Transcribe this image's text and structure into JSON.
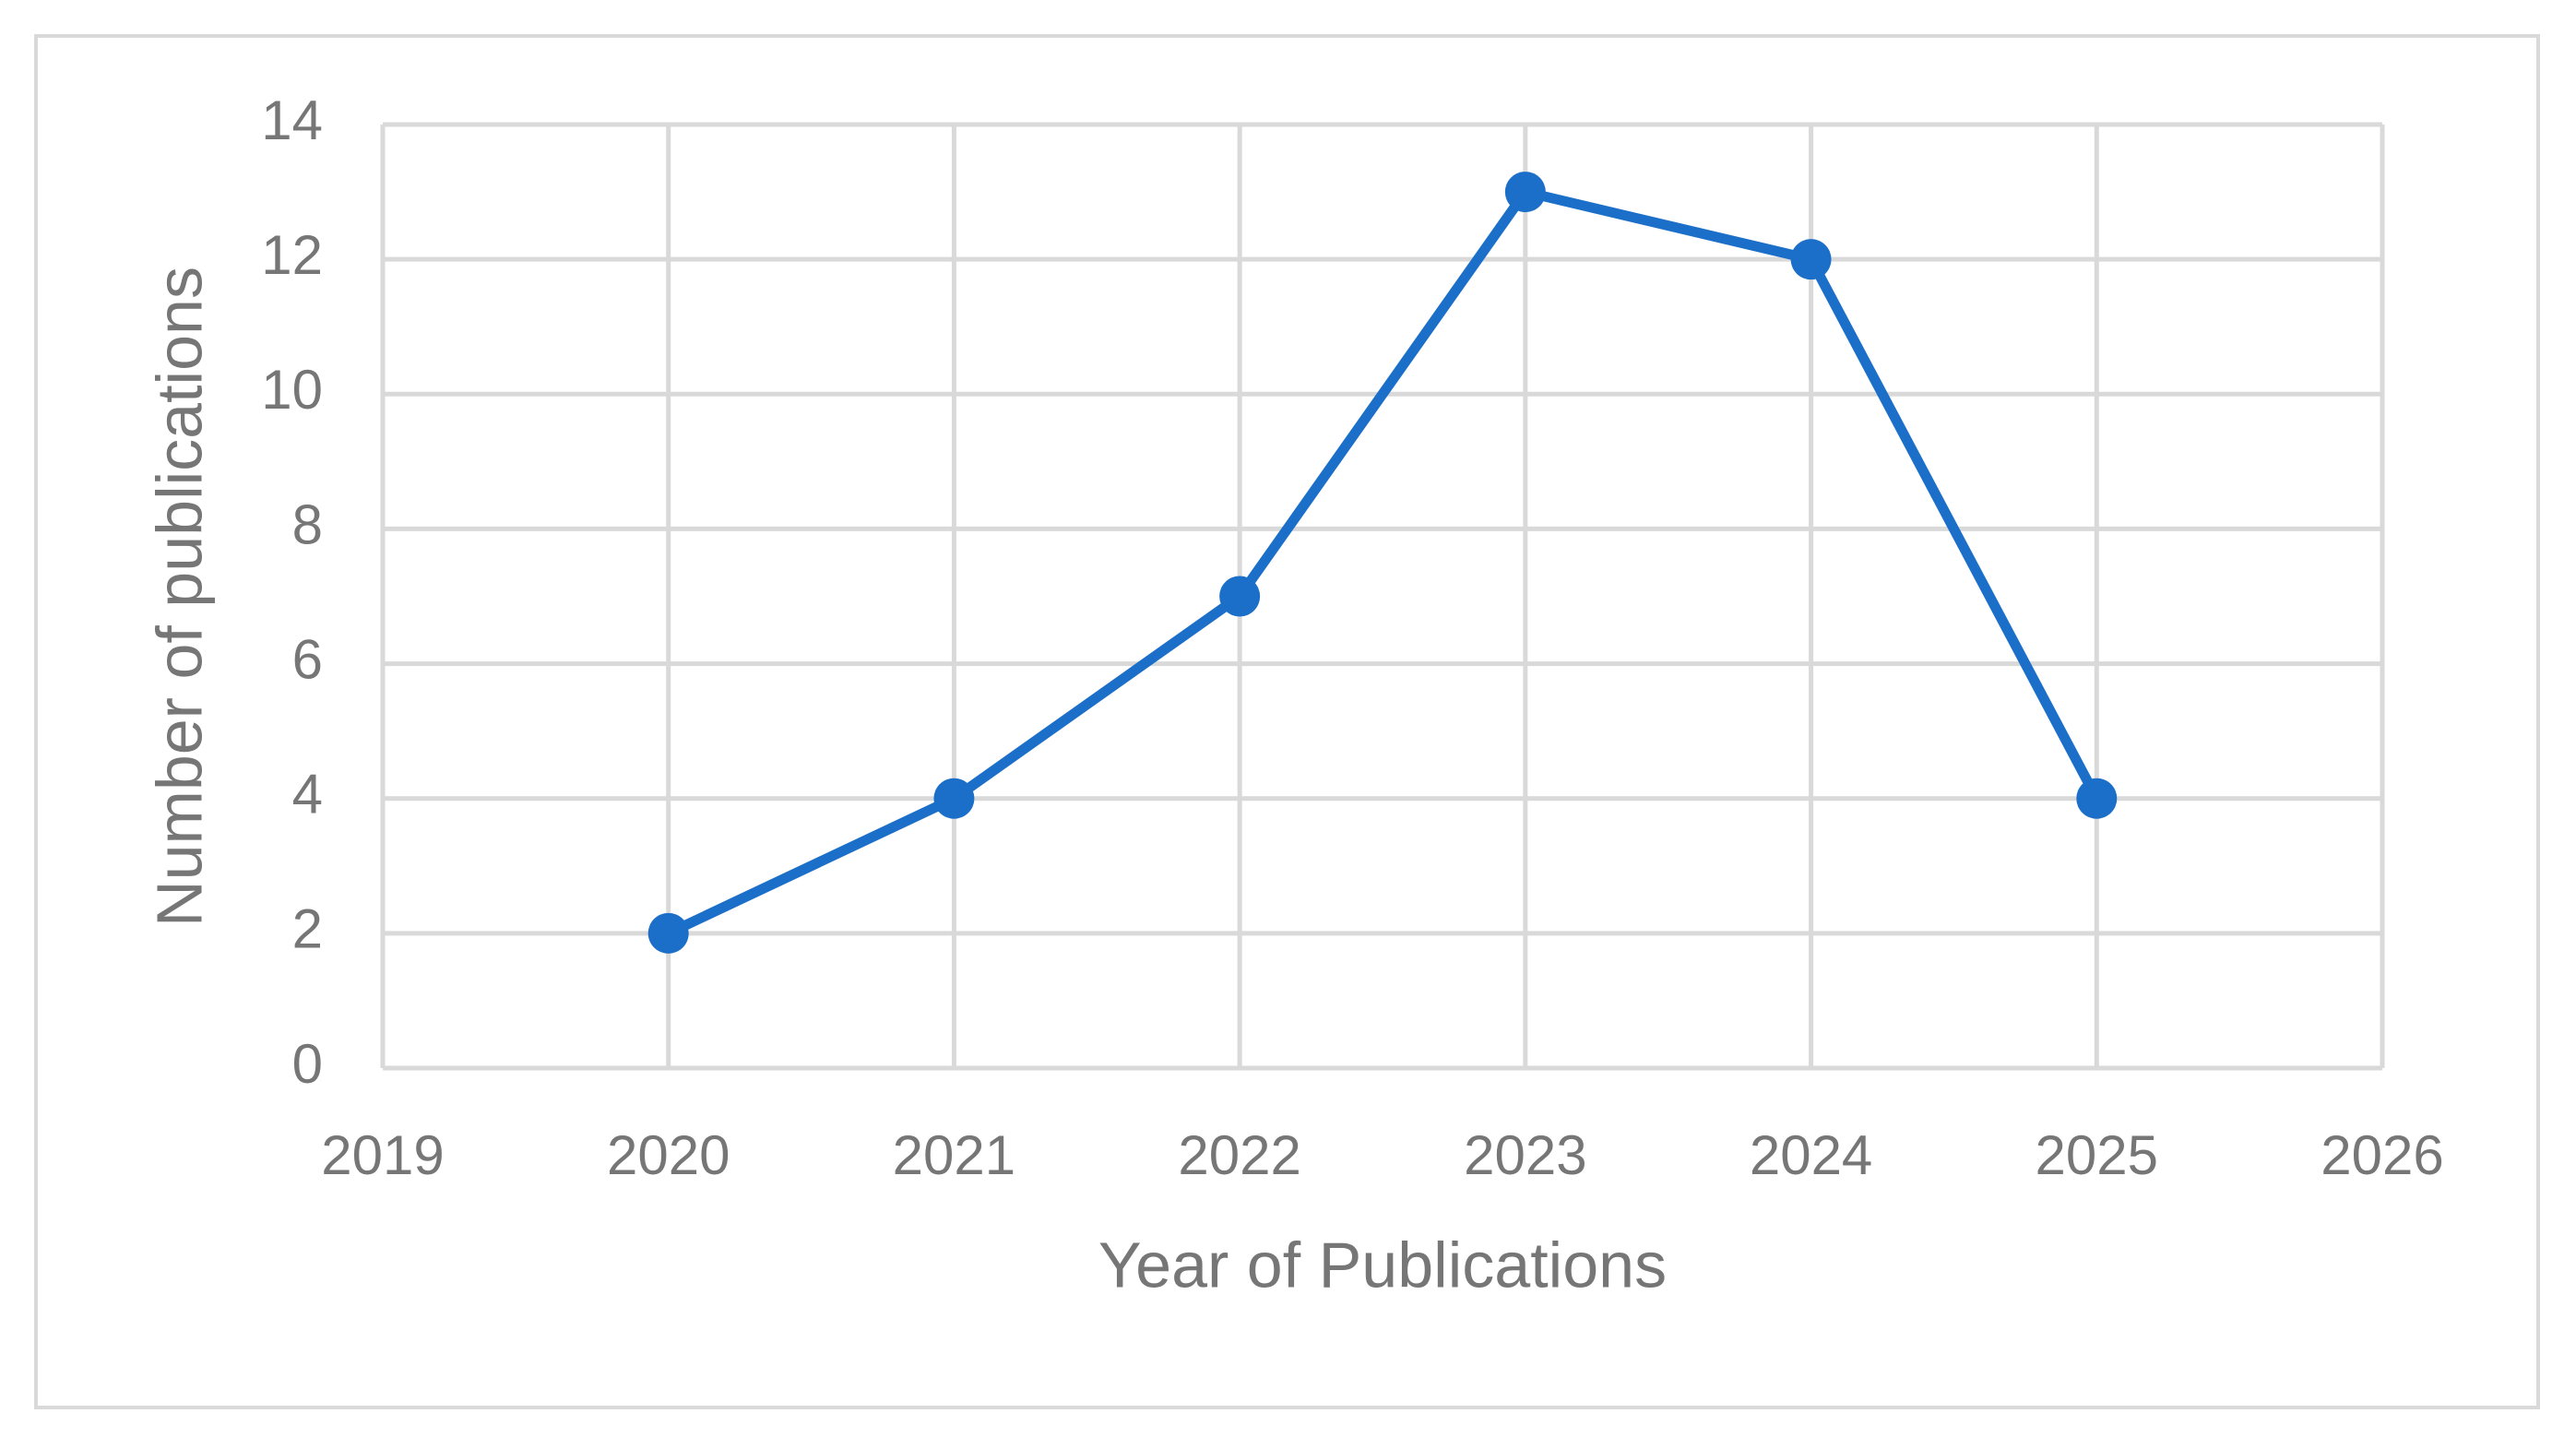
{
  "chart_data": {
    "type": "line",
    "x_label": "Year of Publications",
    "y_label": "Number of publications",
    "x": [
      2020,
      2021,
      2022,
      2023,
      2024,
      2025
    ],
    "values": [
      2,
      4,
      7,
      13,
      12,
      4
    ],
    "color": "#1b6fc8",
    "xlim": [
      2019,
      2026
    ],
    "xticks": [
      2019,
      2020,
      2021,
      2022,
      2023,
      2024,
      2025,
      2026
    ],
    "ylim": [
      0,
      14
    ],
    "yticks": [
      0,
      2,
      4,
      6,
      8,
      10,
      12,
      14
    ],
    "grid": true
  }
}
